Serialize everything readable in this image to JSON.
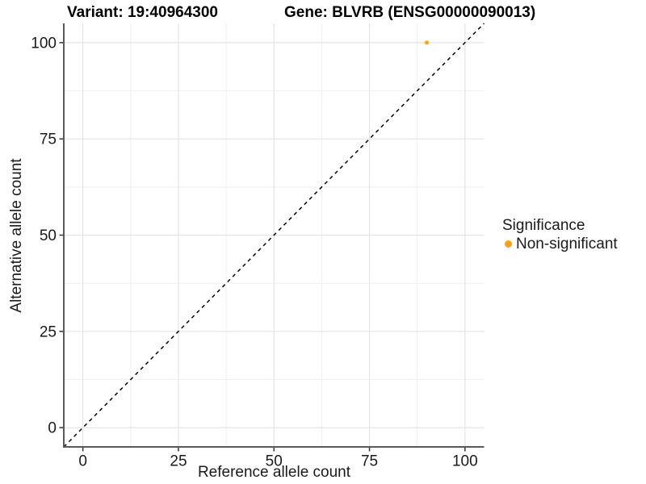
{
  "header": {
    "variant_title": "Variant: 19:40964300",
    "gene_title": "Gene: BLVRB (ENSG00000090013)"
  },
  "chart_data": {
    "type": "scatter",
    "titles": [
      "Variant: 19:40964300",
      "Gene: BLVRB (ENSG00000090013)"
    ],
    "xlabel": "Reference allele count",
    "ylabel": "Alternative allele count",
    "xlim": [
      -5,
      105
    ],
    "ylim": [
      -5,
      105
    ],
    "x_ticks": [
      0,
      25,
      50,
      75,
      100
    ],
    "y_ticks": [
      0,
      25,
      50,
      75,
      100
    ],
    "minor_grid_step": 12.5,
    "grid": "major+minor on white background",
    "series": [
      {
        "name": "Non-significant",
        "color": "#FFA113",
        "points": [
          {
            "x": 90,
            "y": 100
          }
        ]
      }
    ],
    "reference_line": {
      "kind": "identity y=x",
      "style": "dashed",
      "color": "#000000"
    },
    "legend": {
      "title": "Significance",
      "position": "right",
      "items": [
        {
          "label": "Non-significant",
          "color": "#FFA113"
        }
      ]
    },
    "colors": {
      "background": "#ffffff",
      "grid_major": "#e4e4e4",
      "grid_minor": "#efefef",
      "axis_line": "#595959",
      "tick_mark": "#333333",
      "text": "#1a1a1a"
    }
  }
}
